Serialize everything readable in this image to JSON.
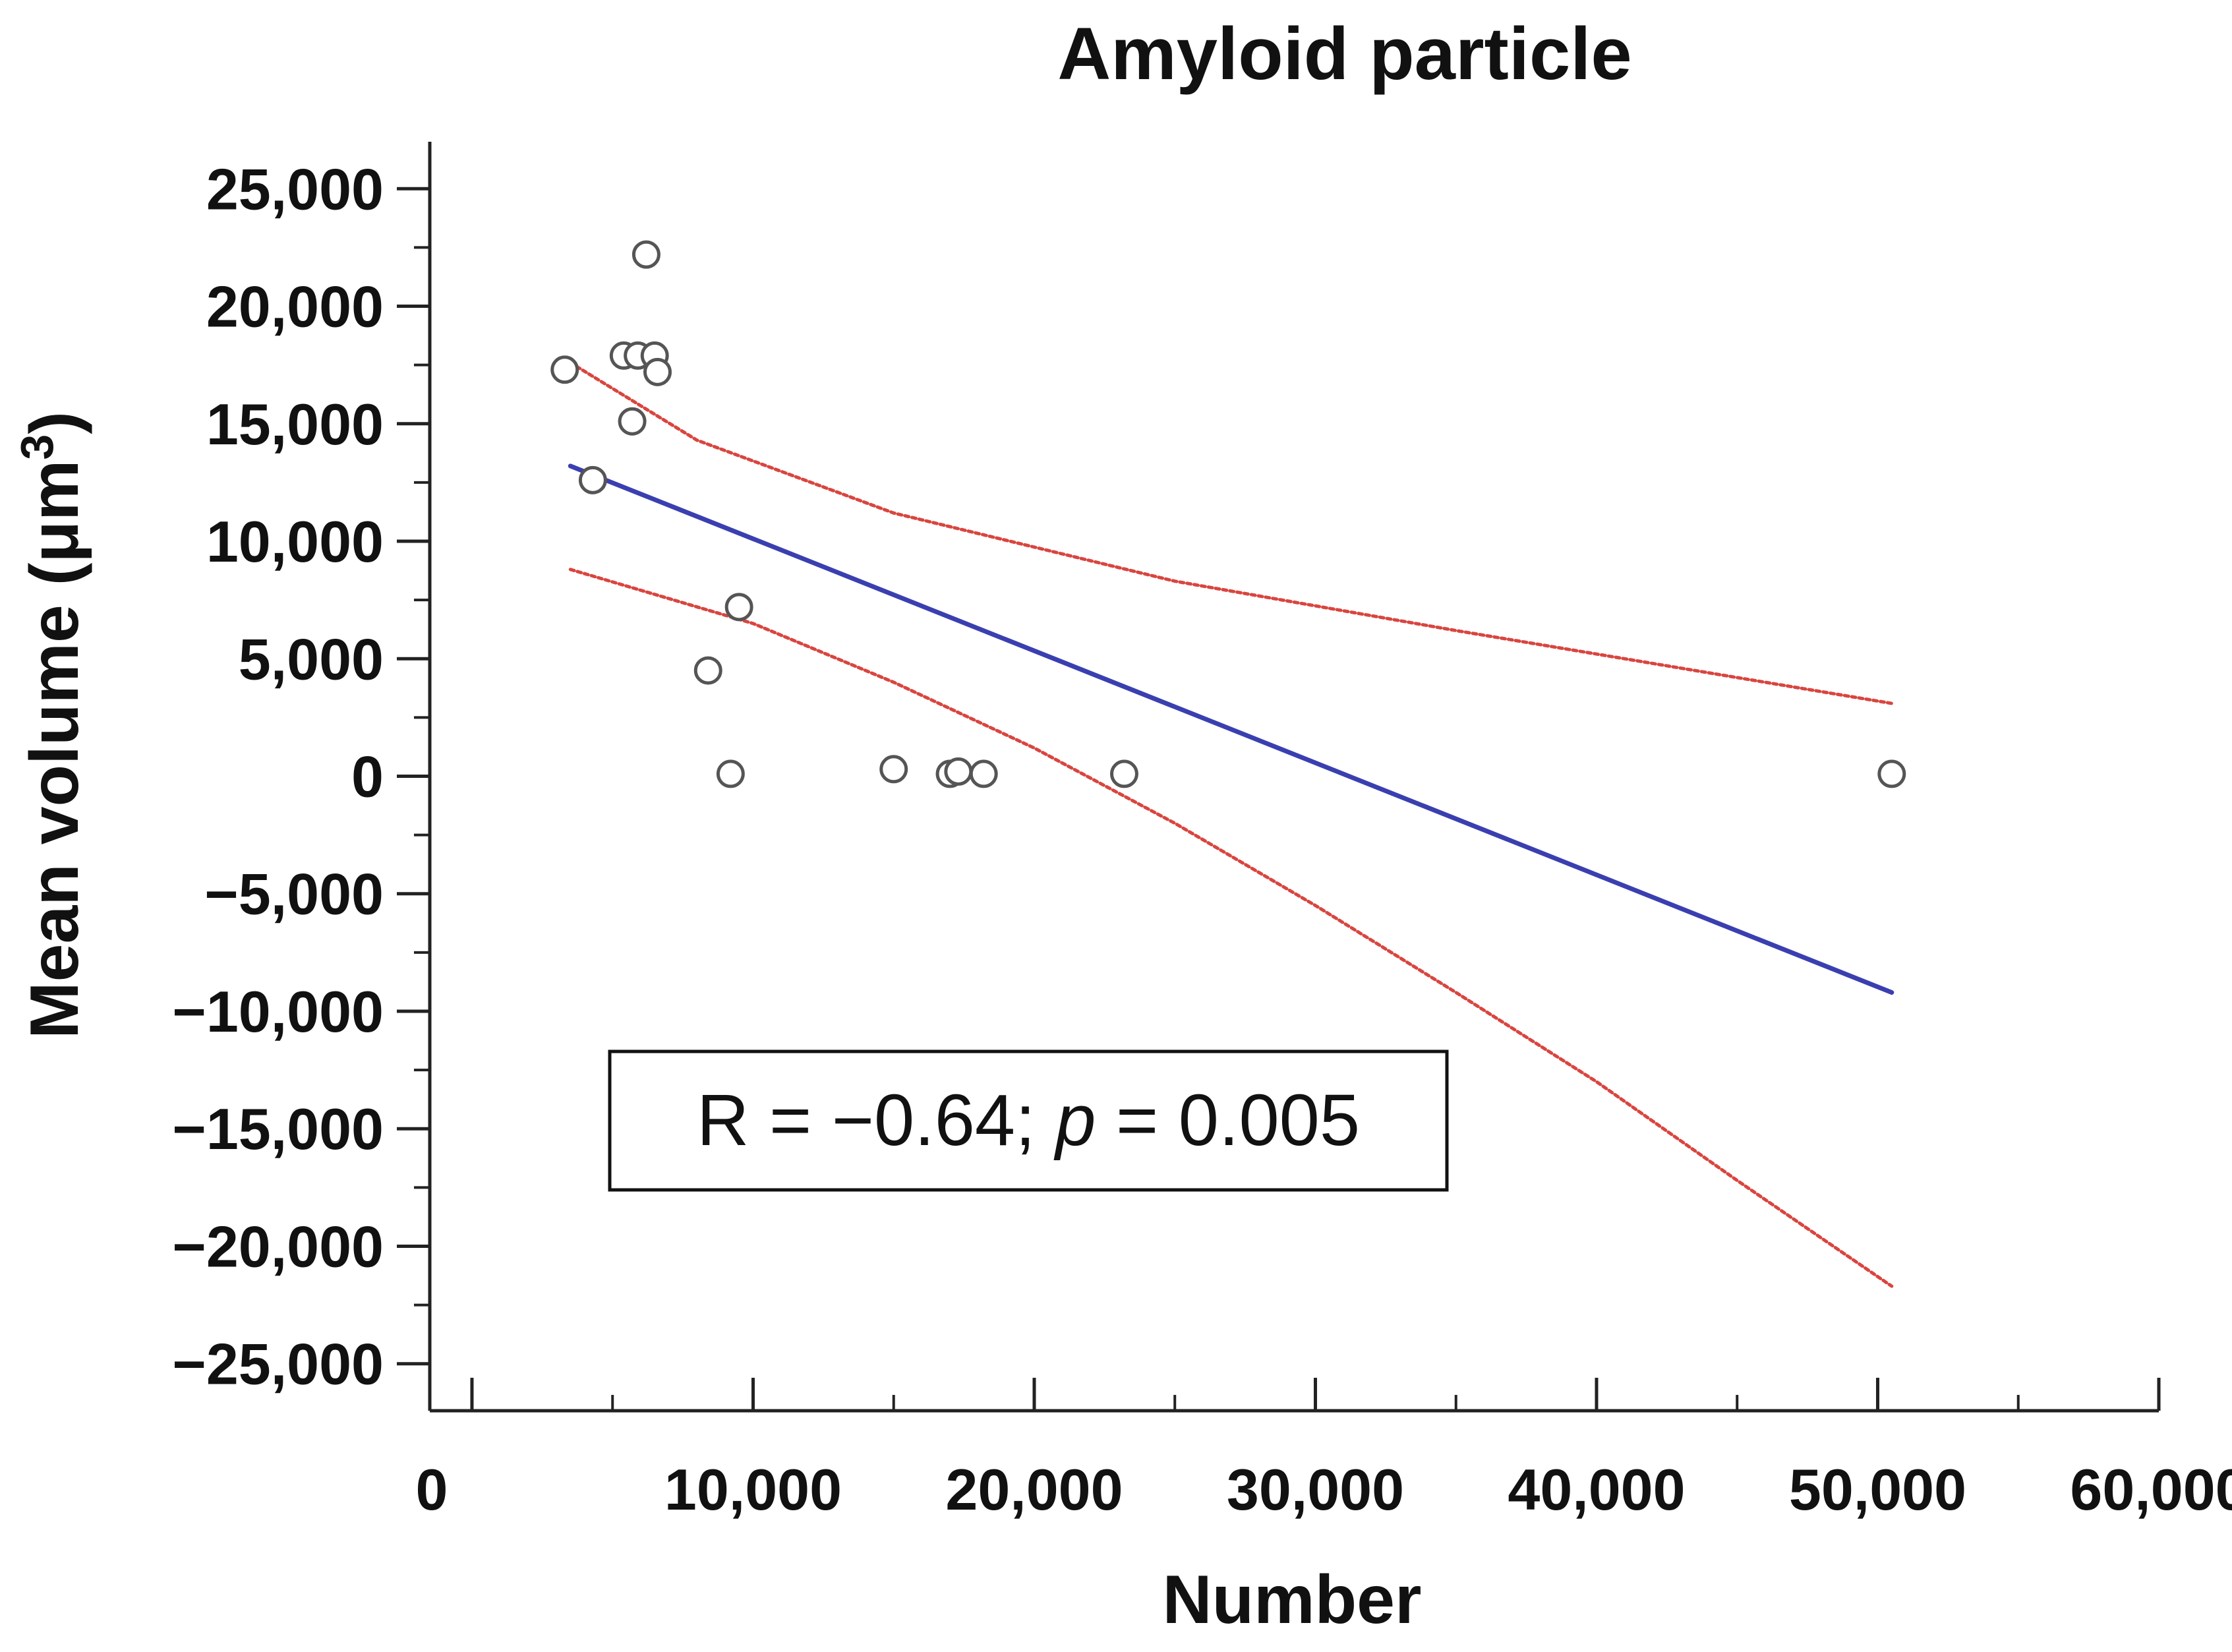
{
  "chart_data": {
    "type": "scatter",
    "title": "Amyloid particle",
    "xlabel": "Number",
    "ylabel": "Mean volume (μm",
    "ylabel_superscript": "3",
    "ylabel_suffix": ")",
    "xlim": [
      -1500,
      60000
    ],
    "ylim": [
      -27000,
      27000
    ],
    "x_ticks": [
      0,
      10000,
      20000,
      30000,
      40000,
      50000,
      60000
    ],
    "x_tick_labels": [
      "0",
      "10,000",
      "20,000",
      "30,000",
      "40,000",
      "50,000",
      "60,000"
    ],
    "y_ticks": [
      25000,
      20000,
      15000,
      10000,
      5000,
      0,
      -5000,
      -10000,
      -15000,
      -20000,
      -25000
    ],
    "y_tick_labels": [
      "25,000",
      "20,000",
      "15,000",
      "10,000",
      "5,000",
      "0",
      "−5,000",
      "−10,000",
      "−15,000",
      "−20,000",
      "−25,000"
    ],
    "grid": false,
    "series": [
      {
        "name": "Observations",
        "marker": "open-circle",
        "color": "#555555",
        "points": [
          {
            "x": 3300,
            "y": 17300
          },
          {
            "x": 4300,
            "y": 12600
          },
          {
            "x": 5400,
            "y": 17900
          },
          {
            "x": 5700,
            "y": 15100
          },
          {
            "x": 5900,
            "y": 17900
          },
          {
            "x": 6200,
            "y": 22200
          },
          {
            "x": 6500,
            "y": 17900
          },
          {
            "x": 6600,
            "y": 17200
          },
          {
            "x": 8400,
            "y": 4500
          },
          {
            "x": 9200,
            "y": 100
          },
          {
            "x": 9500,
            "y": 7200
          },
          {
            "x": 15000,
            "y": 300
          },
          {
            "x": 17000,
            "y": 100
          },
          {
            "x": 17300,
            "y": 200
          },
          {
            "x": 18200,
            "y": 100
          },
          {
            "x": 23200,
            "y": 100
          },
          {
            "x": 50500,
            "y": 100
          }
        ]
      },
      {
        "name": "Regression line",
        "style": "solid",
        "color": "#3a3fb0",
        "points": [
          {
            "x": 3500,
            "y": 13200
          },
          {
            "x": 50500,
            "y": -9200
          }
        ]
      },
      {
        "name": "Upper confidence band",
        "style": "dotted",
        "color": "#d9453f",
        "points": [
          {
            "x": 3500,
            "y": 17600
          },
          {
            "x": 8000,
            "y": 14300
          },
          {
            "x": 15000,
            "y": 11200
          },
          {
            "x": 25000,
            "y": 8300
          },
          {
            "x": 35000,
            "y": 6200
          },
          {
            "x": 45000,
            "y": 4200
          },
          {
            "x": 50500,
            "y": 3100
          }
        ]
      },
      {
        "name": "Lower confidence band",
        "style": "dotted",
        "color": "#d9453f",
        "points": [
          {
            "x": 3500,
            "y": 8800
          },
          {
            "x": 10000,
            "y": 6500
          },
          {
            "x": 15000,
            "y": 4000
          },
          {
            "x": 20000,
            "y": 1200
          },
          {
            "x": 25000,
            "y": -2000
          },
          {
            "x": 30000,
            "y": -5500
          },
          {
            "x": 35000,
            "y": -9200
          },
          {
            "x": 40000,
            "y": -13000
          },
          {
            "x": 45000,
            "y": -17200
          },
          {
            "x": 50500,
            "y": -21700
          }
        ]
      }
    ],
    "annotation": {
      "r_prefix": "R = −0.64; ",
      "p_symbol": "p",
      "p_suffix": " = 0.005"
    }
  }
}
